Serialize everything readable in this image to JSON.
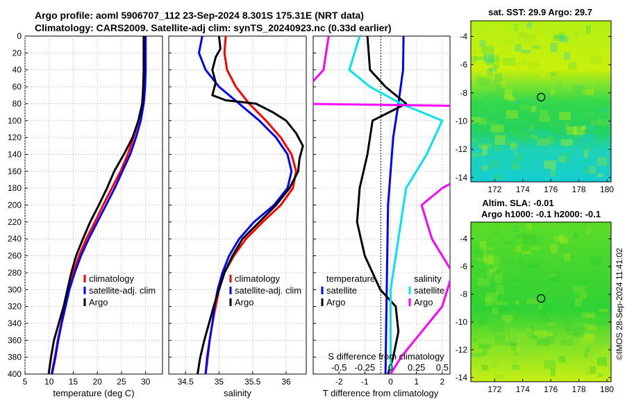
{
  "title_line1": "Argo profile: aoml 5906707_112 23-Sep-2024 8.301S 175.31E (NRT data)",
  "title_line2": "Climatology: CARS2009. Satellite-adj clim: synTS_20240923.nc (0.33d earlier)",
  "watermark": "©IMOS 28-Sep-2024 11:41:02",
  "colors": {
    "climatology": "#ff0000",
    "satellite": "#0000ff",
    "argo": "#000000",
    "sat_s": "#00e5ee",
    "argo_s": "#ff00ff"
  },
  "depth_ticks": [
    "0",
    "20",
    "40",
    "60",
    "80",
    "100",
    "120",
    "140",
    "160",
    "180",
    "200",
    "220",
    "240",
    "260",
    "280",
    "300",
    "320",
    "340",
    "360",
    "380",
    "400"
  ],
  "chart_data": [
    {
      "type": "line",
      "id": "temperature",
      "xlabel": "temperature (deg C)",
      "ylabel": "depth",
      "xlim": [
        5,
        33.5
      ],
      "ylim": [
        400,
        0
      ],
      "xticks": [
        5,
        10,
        15,
        20,
        25,
        30
      ],
      "xtick_labels": [
        "5",
        "10",
        "15",
        "20",
        "25",
        "30"
      ],
      "legend": [
        "climatology",
        "satellite-adj. clim",
        "Argo"
      ],
      "series": [
        {
          "name": "climatology",
          "color": "#ff0000",
          "points": [
            [
              29.8,
              0
            ],
            [
              29.8,
              40
            ],
            [
              29.7,
              60
            ],
            [
              29.3,
              80
            ],
            [
              28.5,
              100
            ],
            [
              27.5,
              120
            ],
            [
              26.3,
              140
            ],
            [
              24.8,
              160
            ],
            [
              23.0,
              180
            ],
            [
              21.2,
              200
            ],
            [
              19.5,
              220
            ],
            [
              17.7,
              240
            ],
            [
              16.2,
              260
            ],
            [
              15.0,
              280
            ],
            [
              14.0,
              300
            ],
            [
              13.2,
              320
            ],
            [
              12.5,
              340
            ],
            [
              11.8,
              360
            ],
            [
              11.2,
              380
            ],
            [
              10.5,
              400
            ]
          ]
        },
        {
          "name": "satellite-adj. clim",
          "color": "#0000ff",
          "points": [
            [
              30.0,
              0
            ],
            [
              30.0,
              40
            ],
            [
              29.9,
              60
            ],
            [
              29.6,
              80
            ],
            [
              29.0,
              100
            ],
            [
              28.0,
              120
            ],
            [
              26.8,
              140
            ],
            [
              25.2,
              160
            ],
            [
              23.6,
              180
            ],
            [
              21.8,
              200
            ],
            [
              20.0,
              220
            ],
            [
              18.2,
              240
            ],
            [
              16.6,
              260
            ],
            [
              15.3,
              280
            ],
            [
              14.2,
              300
            ],
            [
              13.4,
              320
            ],
            [
              12.6,
              340
            ],
            [
              11.9,
              360
            ],
            [
              11.3,
              380
            ],
            [
              10.6,
              400
            ]
          ]
        },
        {
          "name": "Argo",
          "color": "#000000",
          "points": [
            [
              29.6,
              0
            ],
            [
              29.6,
              40
            ],
            [
              29.5,
              60
            ],
            [
              29.3,
              80
            ],
            [
              28.5,
              100
            ],
            [
              27.3,
              120
            ],
            [
              25.5,
              140
            ],
            [
              23.5,
              160
            ],
            [
              22.0,
              180
            ],
            [
              20.3,
              200
            ],
            [
              18.5,
              220
            ],
            [
              17.0,
              240
            ],
            [
              15.6,
              260
            ],
            [
              14.6,
              280
            ],
            [
              13.8,
              300
            ],
            [
              13.0,
              320
            ],
            [
              12.0,
              340
            ],
            [
              11.0,
              360
            ],
            [
              10.4,
              380
            ],
            [
              9.9,
              400
            ]
          ]
        }
      ]
    },
    {
      "type": "line",
      "id": "salinity",
      "xlabel": "salinity",
      "xlim": [
        34.25,
        36.3
      ],
      "ylim": [
        400,
        0
      ],
      "xticks": [
        34.5,
        35,
        35.5,
        36
      ],
      "xtick_labels": [
        "34.5",
        "35",
        "35.5",
        "36"
      ],
      "legend": [
        "climatology",
        "satellite-adj. clim",
        "Argo"
      ],
      "series": [
        {
          "name": "climatology",
          "color": "#ff0000",
          "points": [
            [
              35.1,
              0
            ],
            [
              35.08,
              20
            ],
            [
              35.12,
              40
            ],
            [
              35.25,
              60
            ],
            [
              35.45,
              80
            ],
            [
              35.7,
              100
            ],
            [
              35.92,
              120
            ],
            [
              36.08,
              140
            ],
            [
              36.15,
              160
            ],
            [
              36.1,
              180
            ],
            [
              35.92,
              200
            ],
            [
              35.65,
              220
            ],
            [
              35.4,
              240
            ],
            [
              35.22,
              260
            ],
            [
              35.08,
              280
            ],
            [
              35.0,
              300
            ],
            [
              34.95,
              320
            ],
            [
              34.9,
              340
            ],
            [
              34.86,
              360
            ],
            [
              34.82,
              380
            ],
            [
              34.8,
              400
            ]
          ]
        },
        {
          "name": "satellite-adj. clim",
          "color": "#0000ff",
          "points": [
            [
              34.75,
              0
            ],
            [
              34.7,
              20
            ],
            [
              34.8,
              40
            ],
            [
              35.0,
              60
            ],
            [
              35.3,
              80
            ],
            [
              35.6,
              100
            ],
            [
              35.85,
              120
            ],
            [
              36.02,
              140
            ],
            [
              36.08,
              160
            ],
            [
              36.02,
              180
            ],
            [
              35.82,
              200
            ],
            [
              35.52,
              220
            ],
            [
              35.3,
              240
            ],
            [
              35.15,
              260
            ],
            [
              35.05,
              280
            ],
            [
              34.98,
              300
            ],
            [
              34.93,
              320
            ],
            [
              34.9,
              340
            ],
            [
              34.86,
              360
            ],
            [
              34.83,
              380
            ],
            [
              34.8,
              400
            ]
          ]
        },
        {
          "name": "Argo",
          "color": "#000000",
          "points": [
            [
              35.0,
              0
            ],
            [
              35.02,
              15
            ],
            [
              34.95,
              25
            ],
            [
              34.9,
              40
            ],
            [
              34.95,
              55
            ],
            [
              34.9,
              70
            ],
            [
              35.1,
              76
            ],
            [
              35.55,
              80
            ],
            [
              35.8,
              90
            ],
            [
              36.0,
              100
            ],
            [
              36.15,
              115
            ],
            [
              36.25,
              130
            ],
            [
              36.2,
              145
            ],
            [
              36.18,
              160
            ],
            [
              36.05,
              180
            ],
            [
              35.85,
              200
            ],
            [
              35.6,
              220
            ],
            [
              35.35,
              240
            ],
            [
              35.2,
              260
            ],
            [
              35.08,
              280
            ],
            [
              35.0,
              300
            ],
            [
              34.92,
              320
            ],
            [
              34.85,
              340
            ],
            [
              34.78,
              360
            ],
            [
              34.72,
              380
            ],
            [
              34.68,
              400
            ]
          ]
        }
      ]
    },
    {
      "type": "line",
      "id": "difference",
      "xlabel": "T difference from climatology",
      "top_xlabel": "S difference from climatology",
      "xlim": [
        -3.0,
        2.3
      ],
      "ylim": [
        400,
        0
      ],
      "xticks": [
        -2,
        -1,
        0,
        1,
        2
      ],
      "xtick_labels": [
        "-2",
        "-1",
        "0",
        "1",
        "2"
      ],
      "s_scale": 4,
      "s_tick_values": [
        -0.5,
        -0.25,
        0,
        0.25,
        0.5
      ],
      "s_tick_labels": [
        "-0.5",
        "-0.25",
        "0",
        "0.25",
        "0.5"
      ],
      "legend_temperature": [
        "temperature",
        "satellite",
        "Argo"
      ],
      "legend_salinity": [
        "salinity",
        "satellite",
        "Argo"
      ],
      "series": [
        {
          "name": "T satellite",
          "color": "#0000ff",
          "points": [
            [
              0.5,
              0
            ],
            [
              0.48,
              40
            ],
            [
              0.3,
              80
            ],
            [
              0.1,
              120
            ],
            [
              -0.1,
              200
            ],
            [
              -0.15,
              300
            ],
            [
              -0.2,
              400
            ]
          ]
        },
        {
          "name": "T Argo",
          "color": "#000000",
          "points": [
            [
              -0.9,
              0
            ],
            [
              -0.8,
              40
            ],
            [
              -0.2,
              60
            ],
            [
              0.6,
              80
            ],
            [
              -0.7,
              100
            ],
            [
              -0.9,
              140
            ],
            [
              -1.2,
              180
            ],
            [
              -1.3,
              220
            ],
            [
              -1.0,
              260
            ],
            [
              -0.4,
              300
            ],
            [
              0.2,
              320
            ],
            [
              0.3,
              350
            ],
            [
              0.1,
              380
            ],
            [
              -0.1,
              400
            ]
          ]
        },
        {
          "name": "S satellite",
          "color": "#00e5ee",
          "points": [
            [
              -0.3,
              0
            ],
            [
              -0.35,
              20
            ],
            [
              -0.4,
              40
            ],
            [
              -0.2,
              60
            ],
            [
              0.1,
              80
            ],
            [
              0.5,
              100
            ],
            [
              0.35,
              140
            ],
            [
              0.15,
              180
            ],
            [
              0.1,
              220
            ],
            [
              0.0,
              300
            ],
            [
              0.0,
              400
            ]
          ]
        },
        {
          "name": "S Argo",
          "color": "#ff00ff",
          "points": [
            [
              -0.6,
              0
            ],
            [
              -0.65,
              40
            ],
            [
              -0.8,
              60
            ],
            [
              -0.9,
              80
            ],
            [
              1.5,
              84
            ],
            [
              1.45,
              100
            ],
            [
              1.4,
              120
            ],
            [
              1.1,
              140
            ],
            [
              0.8,
              160
            ],
            [
              0.5,
              180
            ],
            [
              0.3,
              200
            ],
            [
              0.4,
              240
            ],
            [
              0.6,
              280
            ],
            [
              0.5,
              320
            ],
            [
              0.3,
              350
            ],
            [
              0.1,
              380
            ],
            [
              0.0,
              400
            ]
          ]
        }
      ]
    },
    {
      "type": "heatmap",
      "id": "sst_map",
      "title": "sat. SST: 29.9 Argo: 29.7",
      "xlim": [
        170.3,
        180.3
      ],
      "ylim": [
        -14.3,
        -2.9
      ],
      "xticks": [
        172,
        174,
        176,
        178,
        180
      ],
      "xtick_labels": [
        "172",
        "174",
        "176",
        "178",
        "180"
      ],
      "yticks": [
        -4,
        -6,
        -8,
        -10,
        -12,
        -14
      ],
      "ytick_labels": [
        "-4",
        "-6",
        "-8",
        "-10",
        "-12",
        "-14"
      ],
      "marker": [
        175.31,
        -8.301
      ]
    },
    {
      "type": "heatmap",
      "id": "sla_map",
      "title_line1": "Altim. SLA: -0.01",
      "title_line2": "Argo h1000: -0.1 h2000: -0.1",
      "xlim": [
        170.3,
        180.3
      ],
      "ylim": [
        -14.3,
        -2.8
      ],
      "xticks": [
        172,
        174,
        176,
        178,
        180
      ],
      "xtick_labels": [
        "172",
        "174",
        "176",
        "178",
        "180"
      ],
      "yticks": [
        -4,
        -6,
        -8,
        -10,
        -12,
        -14
      ],
      "ytick_labels": [
        "-4",
        "-6",
        "-8",
        "-10",
        "-12",
        "-14"
      ],
      "marker": [
        175.31,
        -8.301
      ]
    }
  ]
}
